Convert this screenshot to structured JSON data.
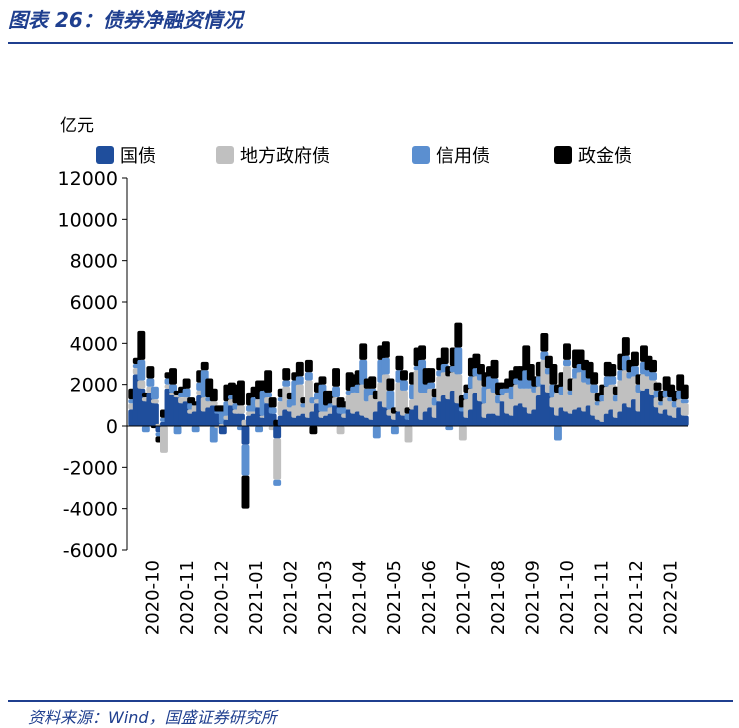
{
  "header": {
    "title": "图表 26：债券净融资情况"
  },
  "footer": {
    "source": "资料来源：Wind，国盛证券研究所"
  },
  "chart_data": {
    "type": "bar",
    "stacked": true,
    "unit_label": "亿元",
    "ylim": [
      -6000,
      12000
    ],
    "yticks": [
      -6000,
      -4000,
      -2000,
      0,
      2000,
      4000,
      6000,
      8000,
      10000,
      12000
    ],
    "x_tick_labels": [
      "2020-10",
      "2020-11",
      "2020-12",
      "2021-01",
      "2021-02",
      "2021-03",
      "2021-04",
      "2021-05",
      "2021-06",
      "2021-07",
      "2021-08",
      "2021-09",
      "2021-10",
      "2021-11",
      "2021-12",
      "2022-01"
    ],
    "legend_position": "top",
    "colors": {
      "国债": "#1f4e9c",
      "地方政府债": "#c0c0c0",
      "信用债": "#5b8fd0",
      "政金债": "#000000"
    },
    "series": [
      {
        "name": "国债",
        "values": [
          800,
          2500,
          1800,
          1200,
          1600,
          1100,
          -300,
          200,
          1800,
          1500,
          1400,
          1100,
          1200,
          600,
          700,
          1500,
          700,
          900,
          1000,
          600,
          -400,
          300,
          1000,
          600,
          600,
          -900,
          500,
          600,
          900,
          400,
          1100,
          600,
          -600,
          500,
          800,
          700,
          400,
          500,
          600,
          400,
          700,
          1100,
          400,
          500,
          600,
          1000,
          600,
          400,
          800,
          600,
          700,
          500,
          400,
          300,
          700,
          1200,
          900,
          500,
          300,
          700,
          500,
          300,
          800,
          1000,
          300,
          700,
          900,
          400,
          1200,
          1500,
          1300,
          1700,
          1100,
          700,
          400,
          800,
          1600,
          1200,
          400,
          600,
          600,
          500,
          1200,
          600,
          500,
          1000,
          1100,
          900,
          600,
          800,
          1500,
          2000,
          1600,
          900,
          500,
          900,
          700,
          600,
          800,
          900,
          700,
          1000,
          500,
          300,
          200,
          600,
          800,
          400,
          700,
          1100,
          900,
          1300,
          700,
          1700,
          1800,
          1500,
          900,
          600,
          800,
          500,
          400,
          900,
          500
        ]
      },
      {
        "name": "地方政府债",
        "values": [
          300,
          300,
          400,
          200,
          300,
          200,
          100,
          -1300,
          200,
          100,
          100,
          300,
          200,
          200,
          300,
          200,
          700,
          300,
          200,
          -100,
          100,
          200,
          300,
          200,
          400,
          300,
          200,
          100,
          400,
          100,
          300,
          -200,
          -2000,
          700,
          1100,
          200,
          600,
          1500,
          300,
          1800,
          400,
          200,
          300,
          200,
          300,
          400,
          -400,
          200,
          700,
          1000,
          900,
          1500,
          800,
          1200,
          600,
          900,
          1600,
          300,
          300,
          1400,
          1200,
          -800,
          500,
          1700,
          1300,
          900,
          900,
          600,
          1200,
          1100,
          1100,
          900,
          1400,
          -700,
          900,
          1000,
          800,
          1000,
          700,
          1200,
          1000,
          600,
          300,
          1000,
          800,
          1000,
          700,
          900,
          1200,
          800,
          400,
          1200,
          900,
          500,
          1100,
          600,
          2200,
          900,
          1500,
          1700,
          1400,
          1000,
          1100,
          700,
          1000,
          1300,
          1200,
          800,
          1500,
          1600,
          1400,
          1100,
          900,
          800,
          600,
          700,
          500,
          400,
          600,
          700,
          500,
          400,
          600
        ]
      },
      {
        "name": "信用债",
        "values": [
          200,
          200,
          1000,
          -300,
          400,
          600,
          -200,
          200,
          300,
          400,
          -400,
          200,
          400,
          300,
          -300,
          400,
          1300,
          200,
          -800,
          100,
          600,
          700,
          200,
          300,
          -200,
          -1500,
          300,
          700,
          -300,
          1200,
          200,
          300,
          -300,
          200,
          300,
          400,
          1200,
          400,
          200,
          400,
          300,
          300,
          1300,
          300,
          200,
          500,
          300,
          300,
          200,
          300,
          400,
          1200,
          600,
          300,
          -600,
          1100,
          800,
          900,
          -400,
          600,
          500,
          300,
          700,
          200,
          1600,
          400,
          300,
          400,
          300,
          400,
          -200,
          300,
          1300,
          200,
          300,
          600,
          400,
          300,
          800,
          600,
          700,
          400,
          300,
          200,
          600,
          300,
          400,
          900,
          400,
          300,
          500,
          400,
          300,
          600,
          -700,
          400,
          300,
          200,
          500,
          400,
          600,
          300,
          400,
          200,
          300,
          500,
          400,
          300,
          500,
          700,
          300,
          500,
          400,
          600,
          300,
          400,
          300,
          200,
          300,
          200,
          300,
          400,
          200
        ]
      },
      {
        "name": "政金债",
        "values": [
          500,
          300,
          1400,
          200,
          600,
          -100,
          -300,
          400,
          300,
          800,
          200,
          300,
          500,
          300,
          200,
          600,
          400,
          900,
          600,
          300,
          300,
          800,
          600,
          900,
          1200,
          -1600,
          600,
          500,
          900,
          500,
          1100,
          500,
          300,
          400,
          600,
          300,
          400,
          700,
          300,
          600,
          -400,
          500,
          400,
          700,
          600,
          900,
          500,
          300,
          900,
          600,
          700,
          800,
          500,
          600,
          400,
          700,
          800,
          600,
          300,
          700,
          500,
          300,
          600,
          900,
          700,
          800,
          700,
          400,
          600,
          800,
          500,
          900,
          1200,
          600,
          400,
          900,
          700,
          500,
          700,
          500,
          900,
          600,
          300,
          500,
          800,
          600,
          700,
          1200,
          800,
          500,
          700,
          900,
          600,
          1000,
          400,
          700,
          800,
          600,
          900,
          700,
          500,
          800,
          600,
          400,
          500,
          700,
          600,
          400,
          800,
          900,
          600,
          700,
          500,
          800,
          700,
          600,
          400,
          500,
          700,
          600,
          500,
          800,
          700
        ]
      }
    ]
  }
}
